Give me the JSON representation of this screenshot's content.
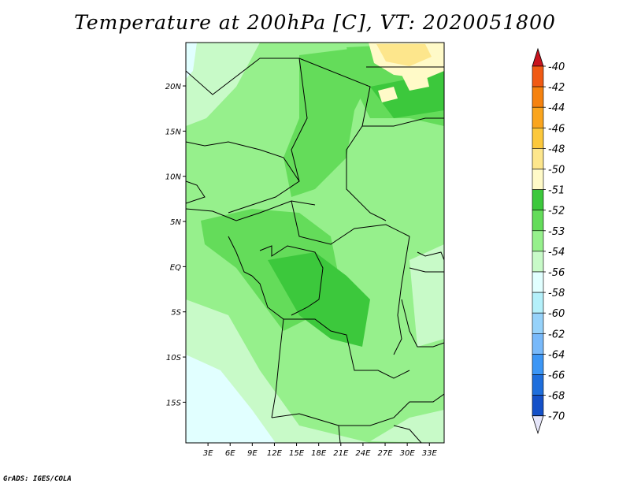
{
  "title": "Temperature at 200hPa [C], VT: 2020051800",
  "credit": "GrADS: IGES/COLA",
  "map": {
    "region": "Central Africa",
    "lat_labels": [
      "20N",
      "15N",
      "10N",
      "5N",
      "EQ",
      "5S",
      "10S",
      "15S"
    ],
    "lat_values": [
      20,
      15,
      10,
      5,
      0,
      -5,
      -10,
      -15
    ],
    "lon_labels": [
      "3E",
      "6E",
      "9E",
      "12E",
      "15E",
      "18E",
      "21E",
      "24E",
      "27E",
      "30E",
      "33E"
    ],
    "lon_values": [
      3,
      6,
      9,
      12,
      15,
      18,
      21,
      24,
      27,
      30,
      33
    ],
    "lat_range": [
      -19.5,
      24.8
    ],
    "lon_range": [
      0,
      35
    ]
  },
  "colorbar": {
    "labels": [
      "-40",
      "-42",
      "-44",
      "-46",
      "-48",
      "-50",
      "-51",
      "-52",
      "-53",
      "-54",
      "-56",
      "-58",
      "-60",
      "-62",
      "-64",
      "-66",
      "-68",
      "-70"
    ],
    "colors": [
      "#e63c1c",
      "#f05a14",
      "#f5820f",
      "#faa51e",
      "#fcc83c",
      "#fde68c",
      "#fffac8",
      "#3cc83c",
      "#64dc5a",
      "#96f08c",
      "#c8fac8",
      "#e1ffff",
      "#b4f0fa",
      "#96d2fa",
      "#78b9fa",
      "#3c96f5",
      "#1e6edc",
      "#1450c8",
      "#0a32a0",
      "#000064"
    ],
    "top_arrow_color": "#c8141e",
    "bottom_arrow_color": "#e6e6fa"
  }
}
